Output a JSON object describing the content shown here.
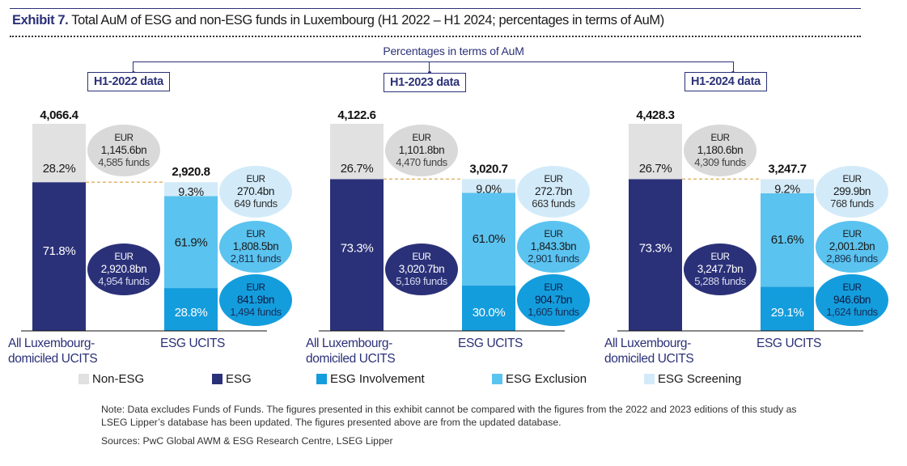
{
  "header": {
    "title_lead": "Exhibit 7.",
    "title_rest": " Total AuM of ESG and non-ESG funds in Luxembourg (H1 2022 – H1 2024; percentages in terms of AuM)",
    "subtitle": "Percentages in terms of AuM"
  },
  "colors": {
    "non_esg": "#e1e1e1",
    "esg": "#2b3178",
    "esg_involvement": "#149ddd",
    "esg_exclusion": "#5bc3ef",
    "esg_screening": "#d3ebf9",
    "brand_navy": "#2b3178",
    "connector": "#e0b46a"
  },
  "legend": [
    {
      "label": "Non-ESG",
      "key": "non_esg"
    },
    {
      "label": "ESG",
      "key": "esg"
    },
    {
      "label": "ESG Involvement",
      "key": "esg_involvement"
    },
    {
      "label": "ESG Exclusion",
      "key": "esg_exclusion"
    },
    {
      "label": "ESG Screening",
      "key": "esg_screening"
    }
  ],
  "footer": {
    "note": "Note: Data excludes Funds of Funds. The figures presented in this exhibit cannot be compared with the figures from the 2022 and 2023 editions of this study as LSEG Lipper’s database has been updated. The figures presented above are from the updated database.",
    "sources": "Sources: PwC Global AWM & ESG Research Centre, LSEG Lipper"
  },
  "chart_data": {
    "type": "bar",
    "title": "Total AuM of ESG and non-ESG funds in Luxembourg (H1 2022 – H1 2024; percentages in terms of AuM)",
    "subtitle": "Percentages in terms of AuM",
    "unit": "EUR bn",
    "categories": [
      "All Luxembourg-domiciled UCITS",
      "ESG UCITS"
    ],
    "panels": [
      {
        "period": "H1-2022 data",
        "all_ucits": {
          "total_label": "4,066.4",
          "total": 4066.4,
          "segments": [
            {
              "key": "esg",
              "name": "ESG",
              "pct": 71.8,
              "pct_label": "71.8%",
              "aum_label": "2,920.8bn",
              "funds_label": "4,954 funds"
            },
            {
              "key": "non_esg",
              "name": "Non-ESG",
              "pct": 28.2,
              "pct_label": "28.2%",
              "aum_label": "1,145.6bn",
              "funds_label": "4,585 funds"
            }
          ]
        },
        "esg_ucits": {
          "total_label": "2,920.8",
          "total": 2920.8,
          "segments": [
            {
              "key": "esg_involvement",
              "name": "ESG Involvement",
              "pct": 28.8,
              "pct_label": "28.8%",
              "aum_label": "841.9bn",
              "funds_label": "1,494 funds"
            },
            {
              "key": "esg_exclusion",
              "name": "ESG Exclusion",
              "pct": 61.9,
              "pct_label": "61.9%",
              "aum_label": "1,808.5bn",
              "funds_label": "2,811 funds"
            },
            {
              "key": "esg_screening",
              "name": "ESG Screening",
              "pct": 9.3,
              "pct_label": "9.3%",
              "aum_label": "270.4bn",
              "funds_label": "649 funds"
            }
          ]
        }
      },
      {
        "period": "H1-2023 data",
        "all_ucits": {
          "total_label": "4,122.6",
          "total": 4122.6,
          "segments": [
            {
              "key": "esg",
              "name": "ESG",
              "pct": 73.3,
              "pct_label": "73.3%",
              "aum_label": "3,020.7bn",
              "funds_label": "5,169 funds"
            },
            {
              "key": "non_esg",
              "name": "Non-ESG",
              "pct": 26.7,
              "pct_label": "26.7%",
              "aum_label": "1,101.8bn",
              "funds_label": "4,470 funds"
            }
          ]
        },
        "esg_ucits": {
          "total_label": "3,020.7",
          "total": 3020.7,
          "segments": [
            {
              "key": "esg_involvement",
              "name": "ESG Involvement",
              "pct": 30.0,
              "pct_label": "30.0%",
              "aum_label": "904.7bn",
              "funds_label": "1,605 funds"
            },
            {
              "key": "esg_exclusion",
              "name": "ESG Exclusion",
              "pct": 61.0,
              "pct_label": "61.0%",
              "aum_label": "1,843.3bn",
              "funds_label": "2,901 funds"
            },
            {
              "key": "esg_screening",
              "name": "ESG Screening",
              "pct": 9.0,
              "pct_label": "9.0%",
              "aum_label": "272.7bn",
              "funds_label": "663 funds"
            }
          ]
        }
      },
      {
        "period": "H1-2024 data",
        "all_ucits": {
          "total_label": "4,428.3",
          "total": 4428.3,
          "segments": [
            {
              "key": "esg",
              "name": "ESG",
              "pct": 73.3,
              "pct_label": "73.3%",
              "aum_label": "3,247.7bn",
              "funds_label": "5,288 funds"
            },
            {
              "key": "non_esg",
              "name": "Non-ESG",
              "pct": 26.7,
              "pct_label": "26.7%",
              "aum_label": "1,180.6bn",
              "funds_label": "4,309 funds"
            }
          ]
        },
        "esg_ucits": {
          "total_label": "3,247.7",
          "total": 3247.7,
          "segments": [
            {
              "key": "esg_involvement",
              "name": "ESG Involvement",
              "pct": 29.1,
              "pct_label": "29.1%",
              "aum_label": "946.6bn",
              "funds_label": "1,624 funds"
            },
            {
              "key": "esg_exclusion",
              "name": "ESG Exclusion",
              "pct": 61.6,
              "pct_label": "61.6%",
              "aum_label": "2,001.2bn",
              "funds_label": "2,896 funds"
            },
            {
              "key": "esg_screening",
              "name": "ESG Screening",
              "pct": 9.2,
              "pct_label": "9.2%",
              "aum_label": "299.9bn",
              "funds_label": "768 funds"
            }
          ]
        }
      }
    ],
    "labels": {
      "all_ucits_line1": "All Luxembourg-",
      "all_ucits_line2": "domiciled UCITS",
      "esg_ucits": "ESG UCITS",
      "currency": "EUR"
    },
    "legend_position": "bottom",
    "grid": false
  }
}
